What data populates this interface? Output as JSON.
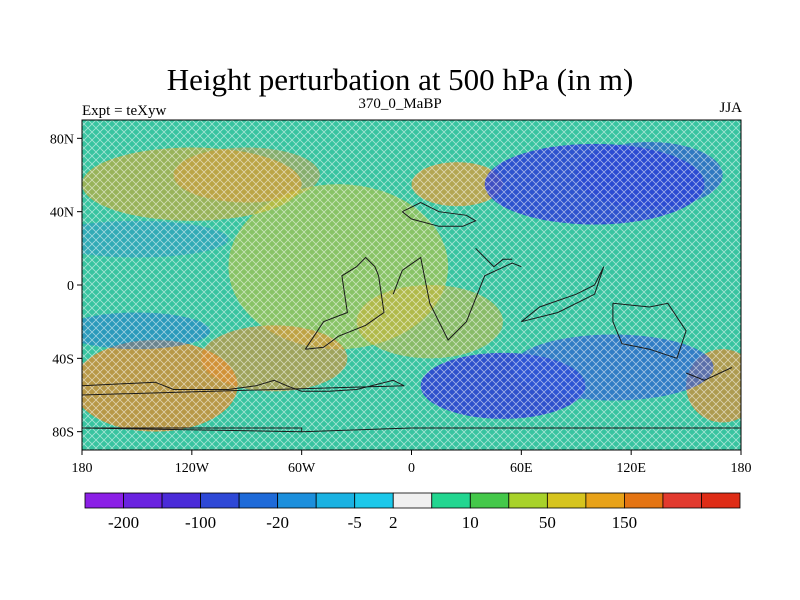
{
  "title": "Height perturbation at 500 hPa (in m)",
  "left_label": "Expt = teXyw",
  "center_label": "370_0_MaBP",
  "right_label": "JJA",
  "lat_labels": [
    "80N",
    "40N",
    "0",
    "40S",
    "80S"
  ],
  "lat_values": [
    80,
    40,
    0,
    -40,
    -80
  ],
  "lon_labels": [
    "180",
    "120W",
    "60W",
    "0",
    "60E",
    "120E",
    "180"
  ],
  "lon_values": [
    -180,
    -120,
    -60,
    0,
    60,
    120,
    180
  ],
  "colorbar": {
    "colors": [
      "#8b1fe6",
      "#6a22e0",
      "#4a2bd8",
      "#2e48d6",
      "#1e6ad8",
      "#1c8fdc",
      "#1ab2e2",
      "#1cc8ea",
      "#f0f0f0",
      "#22d690",
      "#44c84a",
      "#a8d22a",
      "#d6c41e",
      "#e8a218",
      "#e47412",
      "#e23a2e",
      "#de2c16"
    ],
    "labels": [
      "-200",
      "-100",
      "-20",
      "-5",
      "2",
      "10",
      "50",
      "150"
    ],
    "label_after_box": [
      1,
      3,
      5,
      7,
      8,
      10,
      12,
      14
    ]
  },
  "field": {
    "background": "#38c4a0",
    "blobs": [
      {
        "lon": -120,
        "lat": 55,
        "w": 60,
        "h": 20,
        "color": "#d9a82b",
        "op": 0.6
      },
      {
        "lon": -90,
        "lat": 60,
        "w": 40,
        "h": 15,
        "color": "#e6952e",
        "op": 0.45
      },
      {
        "lon": 25,
        "lat": 55,
        "w": 25,
        "h": 12,
        "color": "#e89a32",
        "op": 0.7
      },
      {
        "lon": -40,
        "lat": 10,
        "w": 60,
        "h": 45,
        "color": "#cbc236",
        "op": 0.55
      },
      {
        "lon": 10,
        "lat": -20,
        "w": 40,
        "h": 20,
        "color": "#d8b230",
        "op": 0.5
      },
      {
        "lon": -140,
        "lat": -55,
        "w": 45,
        "h": 25,
        "color": "#e28a2a",
        "op": 0.75
      },
      {
        "lon": -75,
        "lat": -40,
        "w": 40,
        "h": 18,
        "color": "#e28e2e",
        "op": 0.6
      },
      {
        "lon": 170,
        "lat": -55,
        "w": 20,
        "h": 20,
        "color": "#e08a2e",
        "op": 0.7
      },
      {
        "lon": 100,
        "lat": 55,
        "w": 60,
        "h": 22,
        "color": "#2c3fd6",
        "op": 0.85
      },
      {
        "lon": 130,
        "lat": 60,
        "w": 40,
        "h": 18,
        "color": "#2a46d6",
        "op": 0.6
      },
      {
        "lon": 50,
        "lat": -55,
        "w": 45,
        "h": 18,
        "color": "#2d3dd4",
        "op": 0.85
      },
      {
        "lon": 110,
        "lat": -45,
        "w": 55,
        "h": 18,
        "color": "#2e58d8",
        "op": 0.65
      },
      {
        "lon": -150,
        "lat": -25,
        "w": 40,
        "h": 10,
        "color": "#1e6fd6",
        "op": 0.5
      },
      {
        "lon": -150,
        "lat": 25,
        "w": 50,
        "h": 10,
        "color": "#2a87d8",
        "op": 0.4
      }
    ]
  },
  "coastlines": [
    [
      [
        -180,
        -55
      ],
      [
        -140,
        -53
      ],
      [
        -130,
        -57
      ],
      [
        -100,
        -57
      ],
      [
        -85,
        -55
      ],
      [
        -75,
        -52
      ],
      [
        -68,
        -55
      ],
      [
        -60,
        -58
      ],
      [
        -45,
        -58
      ],
      [
        -30,
        -57
      ],
      [
        -10,
        -52
      ],
      [
        -4,
        -55
      ],
      [
        -180,
        -60
      ]
    ],
    [
      [
        -60,
        -80
      ],
      [
        -60,
        -78
      ],
      [
        -180,
        -78
      ]
    ],
    [
      [
        -58,
        -35
      ],
      [
        -48,
        -20
      ],
      [
        -35,
        -15
      ],
      [
        -38,
        5
      ],
      [
        -30,
        10
      ],
      [
        -25,
        15
      ],
      [
        -20,
        10
      ],
      [
        -18,
        5
      ],
      [
        -15,
        -15
      ],
      [
        -25,
        -22
      ],
      [
        -40,
        -28
      ],
      [
        -48,
        -34
      ],
      [
        -58,
        -35
      ]
    ],
    [
      [
        -10,
        -5
      ],
      [
        -5,
        8
      ],
      [
        5,
        15
      ],
      [
        10,
        -10
      ],
      [
        20,
        -30
      ],
      [
        30,
        -20
      ],
      [
        40,
        5
      ],
      [
        55,
        12
      ],
      [
        60,
        10
      ]
    ],
    [
      [
        -5,
        40
      ],
      [
        5,
        45
      ],
      [
        15,
        40
      ],
      [
        30,
        38
      ],
      [
        35,
        35
      ],
      [
        28,
        32
      ],
      [
        15,
        32
      ],
      [
        0,
        36
      ],
      [
        -5,
        40
      ]
    ],
    [
      [
        35,
        20
      ],
      [
        40,
        15
      ],
      [
        45,
        10
      ],
      [
        50,
        14
      ],
      [
        55,
        14
      ]
    ],
    [
      [
        60,
        -20
      ],
      [
        80,
        -15
      ],
      [
        100,
        -5
      ],
      [
        105,
        10
      ],
      [
        100,
        0
      ],
      [
        90,
        -5
      ],
      [
        70,
        -12
      ],
      [
        60,
        -20
      ]
    ],
    [
      [
        110,
        -10
      ],
      [
        130,
        -12
      ],
      [
        140,
        -10
      ],
      [
        150,
        -25
      ],
      [
        145,
        -40
      ],
      [
        130,
        -35
      ],
      [
        115,
        -32
      ],
      [
        110,
        -20
      ],
      [
        110,
        -10
      ]
    ],
    [
      [
        150,
        -48
      ],
      [
        160,
        -52
      ],
      [
        175,
        -45
      ]
    ],
    [
      [
        -180,
        -78
      ],
      [
        -60,
        -80
      ],
      [
        0,
        -78
      ],
      [
        90,
        -78
      ],
      [
        180,
        -78
      ]
    ]
  ]
}
